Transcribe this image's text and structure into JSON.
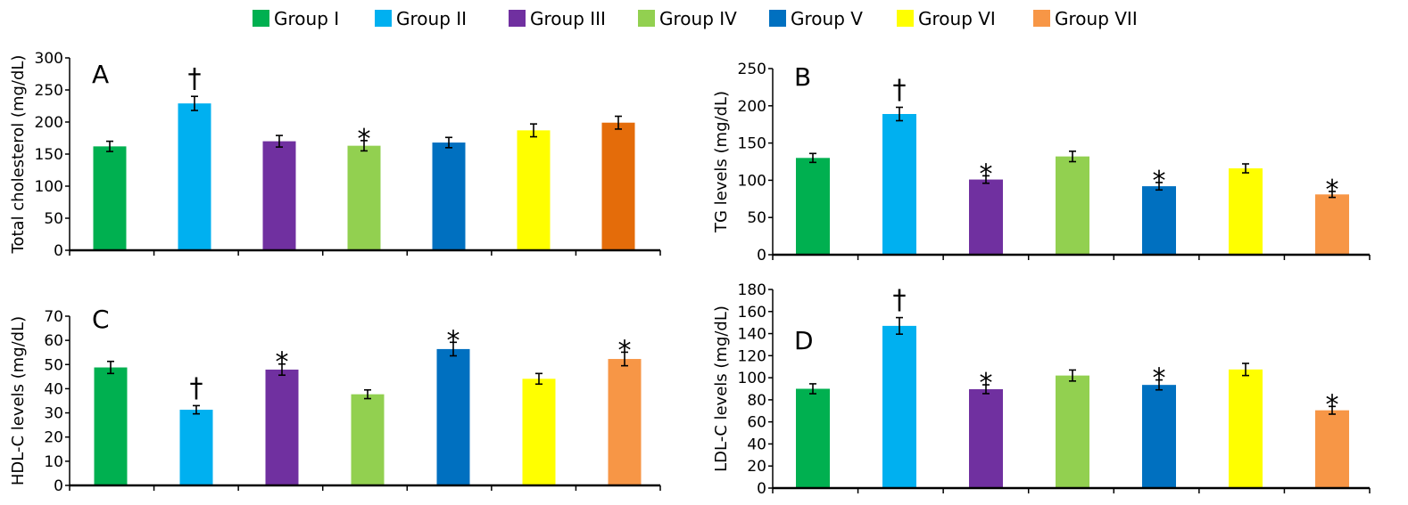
{
  "chart_data": [
    {
      "type": "bar",
      "panel_label": "A",
      "ylabel": "Total cholesterol (mg/dL)",
      "ylim": [
        0,
        300
      ],
      "yticks": [
        0,
        50,
        100,
        150,
        200,
        250,
        300
      ],
      "categories": [
        "Group I",
        "Group II",
        "Group III",
        "Group IV",
        "Group V",
        "Group VI",
        "Group VII"
      ],
      "values": [
        162,
        229,
        170,
        163,
        168,
        187,
        199
      ],
      "errors": [
        8,
        11,
        9,
        8,
        8,
        10,
        10
      ],
      "annotations": [
        "",
        "†",
        "",
        "*",
        "",
        "",
        ""
      ],
      "colors": [
        "#00b050",
        "#00b0f0",
        "#7030a0",
        "#92d050",
        "#0070c0",
        "#ffff00",
        "#e46c0a"
      ]
    },
    {
      "type": "bar",
      "panel_label": "B",
      "ylabel": "TG levels (mg/dL)",
      "ylim": [
        0,
        250
      ],
      "yticks": [
        0,
        50,
        100,
        150,
        200,
        250
      ],
      "categories": [
        "Group I",
        "Group II",
        "Group III",
        "Group IV",
        "Group V",
        "Group VI",
        "Group VII"
      ],
      "values": [
        130,
        189,
        101,
        132,
        92,
        116,
        81
      ],
      "errors": [
        6,
        9,
        5,
        7,
        5,
        6,
        4
      ],
      "annotations": [
        "",
        "†",
        "*",
        "",
        "*",
        "",
        "*"
      ],
      "colors": [
        "#00b050",
        "#00b0f0",
        "#7030a0",
        "#92d050",
        "#0070c0",
        "#ffff00",
        "#f79646"
      ]
    },
    {
      "type": "bar",
      "panel_label": "C",
      "ylabel": "HDL-C levels (mg/dL)",
      "ylim": [
        0,
        70
      ],
      "yticks": [
        0,
        10,
        20,
        30,
        40,
        50,
        60,
        70
      ],
      "categories": [
        "Group I",
        "Group II",
        "Group III",
        "Group IV",
        "Group V",
        "Group VI",
        "Group VII"
      ],
      "values": [
        48.8,
        31.3,
        47.9,
        37.7,
        56.4,
        44.1,
        52.3
      ],
      "errors": [
        2.5,
        1.7,
        2.3,
        1.8,
        2.8,
        2.2,
        2.8
      ],
      "annotations": [
        "",
        "†",
        "*",
        "",
        "*",
        "",
        "*"
      ],
      "colors": [
        "#00b050",
        "#00b0f0",
        "#7030a0",
        "#92d050",
        "#0070c0",
        "#ffff00",
        "#f79646"
      ]
    },
    {
      "type": "bar",
      "panel_label": "D",
      "ylabel": "LDL-C levels (mg/dL)",
      "ylim": [
        0,
        180
      ],
      "yticks": [
        0,
        20,
        40,
        60,
        80,
        100,
        120,
        140,
        160,
        180
      ],
      "categories": [
        "Group I",
        "Group II",
        "Group III",
        "Group IV",
        "Group V",
        "Group VI",
        "Group VII"
      ],
      "values": [
        90,
        147,
        89.6,
        102,
        93.5,
        107.5,
        70.5
      ],
      "errors": [
        4.5,
        7.5,
        4,
        5,
        4.5,
        5.5,
        3.5
      ],
      "annotations": [
        "",
        "†",
        "*",
        "",
        "*",
        "",
        "*"
      ],
      "colors": [
        "#00b050",
        "#00b0f0",
        "#7030a0",
        "#92d050",
        "#0070c0",
        "#ffff00",
        "#f79646"
      ]
    }
  ],
  "legend": {
    "placement": "top-center",
    "items": [
      {
        "label": "Group I",
        "color": "#00b050"
      },
      {
        "label": "Group II",
        "color": "#00b0f0"
      },
      {
        "label": "Group III",
        "color": "#7030a0"
      },
      {
        "label": "Group IV",
        "color": "#92d050"
      },
      {
        "label": "Group V",
        "color": "#0070c0"
      },
      {
        "label": "Group VI",
        "color": "#ffff00"
      },
      {
        "label": "Group VII",
        "color": "#f79646"
      }
    ]
  }
}
